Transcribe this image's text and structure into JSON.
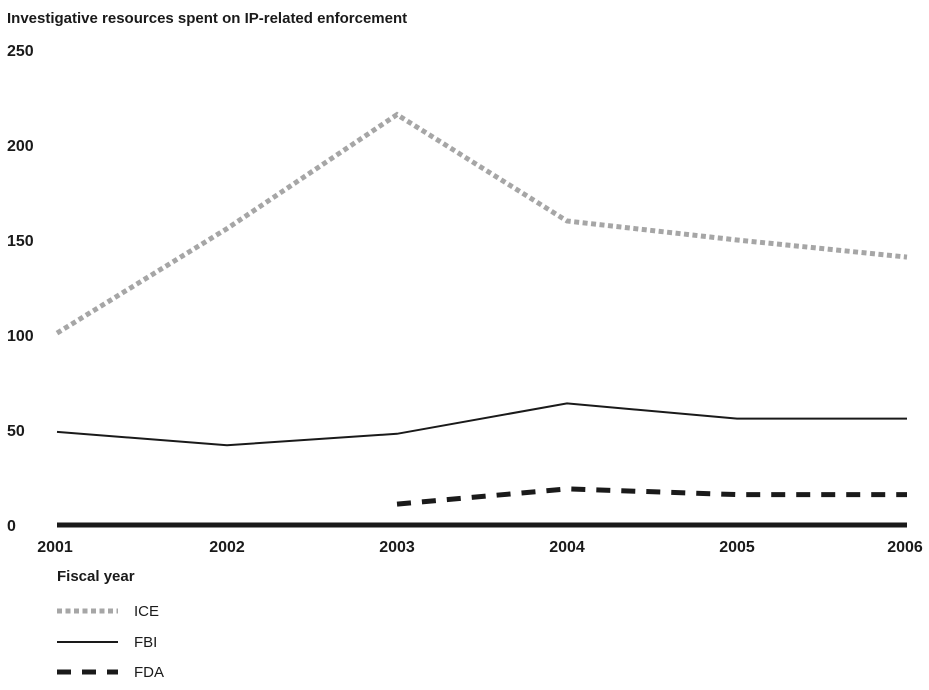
{
  "chart_data": {
    "type": "line",
    "title": "Investigative resources spent on IP-related enforcement",
    "xlabel": "Fiscal year",
    "ylabel": "",
    "ylim": [
      0,
      250
    ],
    "y_ticks": [
      "0",
      "50",
      "100",
      "150",
      "200",
      "250"
    ],
    "x": [
      "2001",
      "2002",
      "2003",
      "2004",
      "2005",
      "2006"
    ],
    "series": [
      {
        "name": "ICE",
        "color": "#a6a6a6",
        "style": "dotted",
        "values": [
          101,
          156,
          216,
          160,
          150,
          141
        ]
      },
      {
        "name": "FBI",
        "color": "#1a1a1a",
        "style": "solid",
        "values": [
          49,
          42,
          48,
          64,
          56,
          56
        ]
      },
      {
        "name": "FDA",
        "color": "#1a1a1a",
        "style": "dashed",
        "values": [
          null,
          null,
          11,
          19,
          16,
          16
        ]
      }
    ],
    "legend": "bottom-left",
    "grid": false
  }
}
